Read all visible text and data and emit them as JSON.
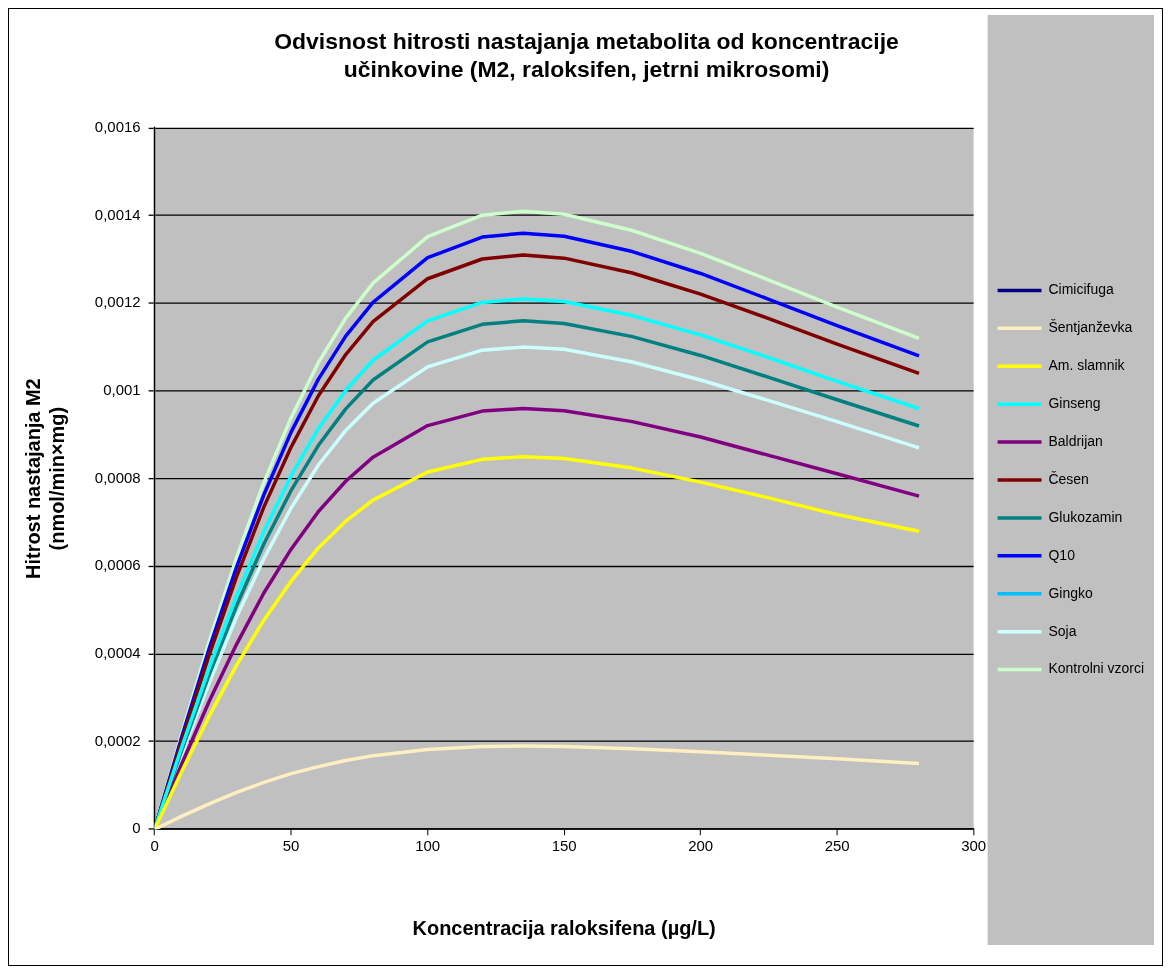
{
  "chart_data": {
    "type": "line",
    "title": "Odvisnost hitrosti nastajanja metabolita od koncentracije\nučinkovine (M2, raloksifen, jetrni mikrosomi)",
    "xlabel": "Koncentracija raloksifena (µg/L)",
    "ylabel": "Hitrost nastajanja M2\n(nmol/min×mg)",
    "x": [
      0,
      10,
      20,
      30,
      40,
      50,
      60,
      70,
      80,
      100,
      120,
      135,
      150,
      175,
      200,
      225,
      250,
      280
    ],
    "series": [
      {
        "name": "Cimicifuga",
        "color": "#000080",
        "values": [
          null,
          null,
          null,
          null,
          null,
          null,
          null,
          null,
          null,
          null,
          null,
          null,
          null,
          null,
          null,
          null,
          null,
          null
        ]
      },
      {
        "name": "Šentjanževka",
        "color": "#ffeec0",
        "values": [
          0,
          3e-05,
          5.8e-05,
          8.4e-05,
          0.000107,
          0.000127,
          0.000143,
          0.000157,
          0.000168,
          0.000182,
          0.000189,
          0.00019,
          0.000189,
          0.000184,
          0.000177,
          0.000169,
          0.000161,
          0.00015
        ]
      },
      {
        "name": "Am. slamnik",
        "color": "#ffff00",
        "values": [
          0,
          0.000133,
          0.000258,
          0.000374,
          0.000477,
          0.000566,
          0.000642,
          0.000703,
          0.000751,
          0.000815,
          0.000844,
          0.00085,
          0.000846,
          0.000824,
          0.000792,
          0.000756,
          0.000718,
          0.00068
        ]
      },
      {
        "name": "Ginseng",
        "color": "#00ffff",
        "values": [
          0,
          0.000189,
          0.000368,
          0.000532,
          0.000679,
          0.000806,
          0.000914,
          0.001001,
          0.00107,
          0.00116,
          0.001202,
          0.00121,
          0.001204,
          0.001172,
          0.001128,
          0.001076,
          0.001022,
          0.00096
        ]
      },
      {
        "name": "Baldrijan",
        "color": "#800080",
        "values": [
          0,
          0.00015,
          0.000292,
          0.000422,
          0.000539,
          0.000639,
          0.000725,
          0.000794,
          0.000849,
          0.000921,
          0.000954,
          0.00096,
          0.000955,
          0.00093,
          0.000895,
          0.000853,
          0.000811,
          0.00076
        ]
      },
      {
        "name": "Česen",
        "color": "#800000",
        "values": [
          0,
          0.000204,
          0.000398,
          0.000576,
          0.000735,
          0.000872,
          0.000989,
          0.001083,
          0.001158,
          0.001256,
          0.001301,
          0.00131,
          0.001303,
          0.001269,
          0.001221,
          0.001165,
          0.001107,
          0.00104
        ]
      },
      {
        "name": "Glukozamin",
        "color": "#008080",
        "values": [
          0,
          0.000181,
          0.000353,
          0.00051,
          0.000651,
          0.000773,
          0.000876,
          0.000959,
          0.001025,
          0.001112,
          0.001152,
          0.00116,
          0.001154,
          0.001124,
          0.001081,
          0.001031,
          0.00098,
          0.00092
        ]
      },
      {
        "name": "Q10",
        "color": "#0000ff",
        "values": [
          0,
          0.000212,
          0.000413,
          0.000598,
          0.000763,
          0.000906,
          0.001027,
          0.001125,
          0.001202,
          0.001304,
          0.001351,
          0.00136,
          0.001353,
          0.001318,
          0.001268,
          0.001209,
          0.001149,
          0.00108
        ]
      },
      {
        "name": "Gingko",
        "color": "#00bfff",
        "values": [
          null,
          null,
          null,
          null,
          null,
          null,
          null,
          null,
          null,
          null,
          null,
          null,
          null,
          null,
          null,
          null,
          null,
          null
        ]
      },
      {
        "name": "Soja",
        "color": "#ccffff",
        "values": [
          0,
          0.000172,
          0.000334,
          0.000484,
          0.000617,
          0.000733,
          0.000831,
          0.00091,
          0.000972,
          0.001055,
          0.001093,
          0.0011,
          0.001095,
          0.001066,
          0.001025,
          0.000978,
          0.00093,
          0.00087
        ]
      },
      {
        "name": "Kontrolni vzorci",
        "color": "#ccffcc",
        "values": [
          0,
          0.00022,
          0.000429,
          0.00062,
          0.000791,
          0.000939,
          0.001065,
          0.001166,
          0.001246,
          0.001352,
          0.001401,
          0.00141,
          0.001403,
          0.001366,
          0.001314,
          0.001253,
          0.001191,
          0.00112
        ]
      }
    ],
    "xlim": [
      0,
      300
    ],
    "xticks": [
      0,
      50,
      100,
      150,
      200,
      250,
      300
    ],
    "ylim": [
      0,
      0.0016
    ],
    "yticks": [
      0,
      {
        "value": 0.0002,
        "label": "0,0002"
      },
      {
        "value": 0.0004,
        "label": "0,0004"
      },
      {
        "value": 0.0006,
        "label": "0,0006"
      },
      {
        "value": 0.0008,
        "label": "0,0008"
      },
      {
        "value": 0.001,
        "label": "0,001"
      },
      {
        "value": 0.0012,
        "label": "0,0012"
      },
      {
        "value": 0.0014,
        "label": "0,0014"
      },
      {
        "value": 0.0016,
        "label": "0,0016"
      }
    ],
    "grid": "y",
    "legend": "right",
    "marker": "none"
  }
}
